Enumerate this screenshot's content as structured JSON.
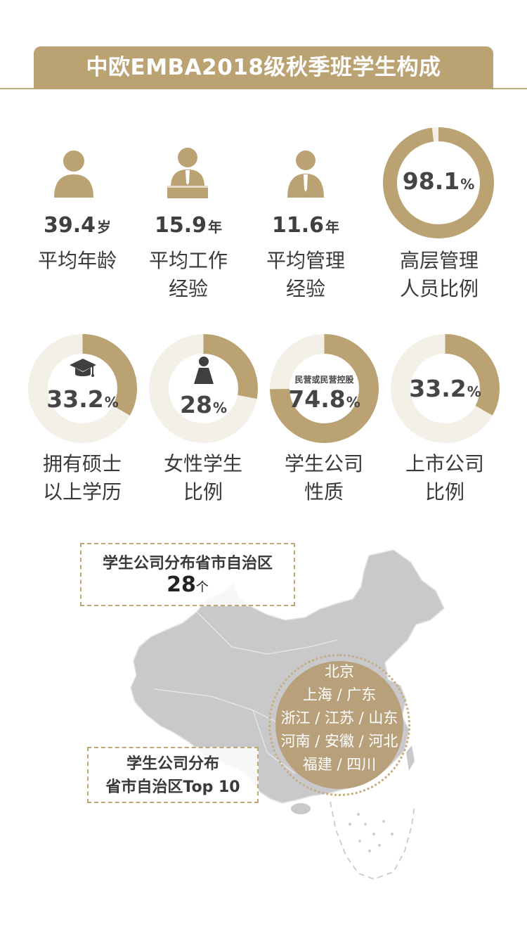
{
  "header": {
    "title": "中欧EMBA2018级秋季班学生构成"
  },
  "stats": [
    {
      "value": "39.4",
      "unit": "岁",
      "label_lines": [
        "平均年龄"
      ],
      "icon": "person-icon"
    },
    {
      "value": "15.9",
      "unit": "年",
      "label_lines": [
        "平均工作",
        "经验"
      ],
      "icon": "person-at-desk-icon"
    },
    {
      "value": "11.6",
      "unit": "年",
      "label_lines": [
        "平均管理",
        "经验"
      ],
      "icon": "person-with-tie-icon"
    },
    {
      "value": "98.1",
      "unit": "%",
      "label_lines": [
        "高层管理",
        "人员比例"
      ],
      "percent": 98.1
    }
  ],
  "donuts": [
    {
      "value": "33.2",
      "unit": "%",
      "percent": 33.2,
      "label_lines": [
        "拥有硕士",
        "以上学历"
      ],
      "icon": "graduation-cap-icon",
      "sub": ""
    },
    {
      "value": "28",
      "unit": "%",
      "percent": 28,
      "label_lines": [
        "女性学生",
        "比例"
      ],
      "icon": "woman-icon",
      "sub": ""
    },
    {
      "value": "74.8",
      "unit": "%",
      "percent": 74.8,
      "label_lines": [
        "学生公司",
        "性质"
      ],
      "icon": "",
      "sub": "民营或民营控股"
    },
    {
      "value": "33.2",
      "unit": "%",
      "percent": 33.2,
      "label_lines": [
        "上市公司",
        "比例"
      ],
      "icon": "",
      "sub": ""
    }
  ],
  "map": {
    "provinces_callout": {
      "line1": "学生公司分布省市自治区",
      "value": "28",
      "unit": "个"
    },
    "top10_callout": {
      "line1": "学生公司分布",
      "line2": "省市自治区Top 10"
    },
    "top10_lines": [
      "北京",
      "上海 / 广东",
      "浙江 / 江苏 / 山东",
      "河南 / 安徽 / 河北",
      "福建 / 四川"
    ]
  },
  "colors": {
    "gold": "#bba273",
    "ring_bg": "#f3f0e8",
    "map_gray": "#c9c9cb"
  }
}
